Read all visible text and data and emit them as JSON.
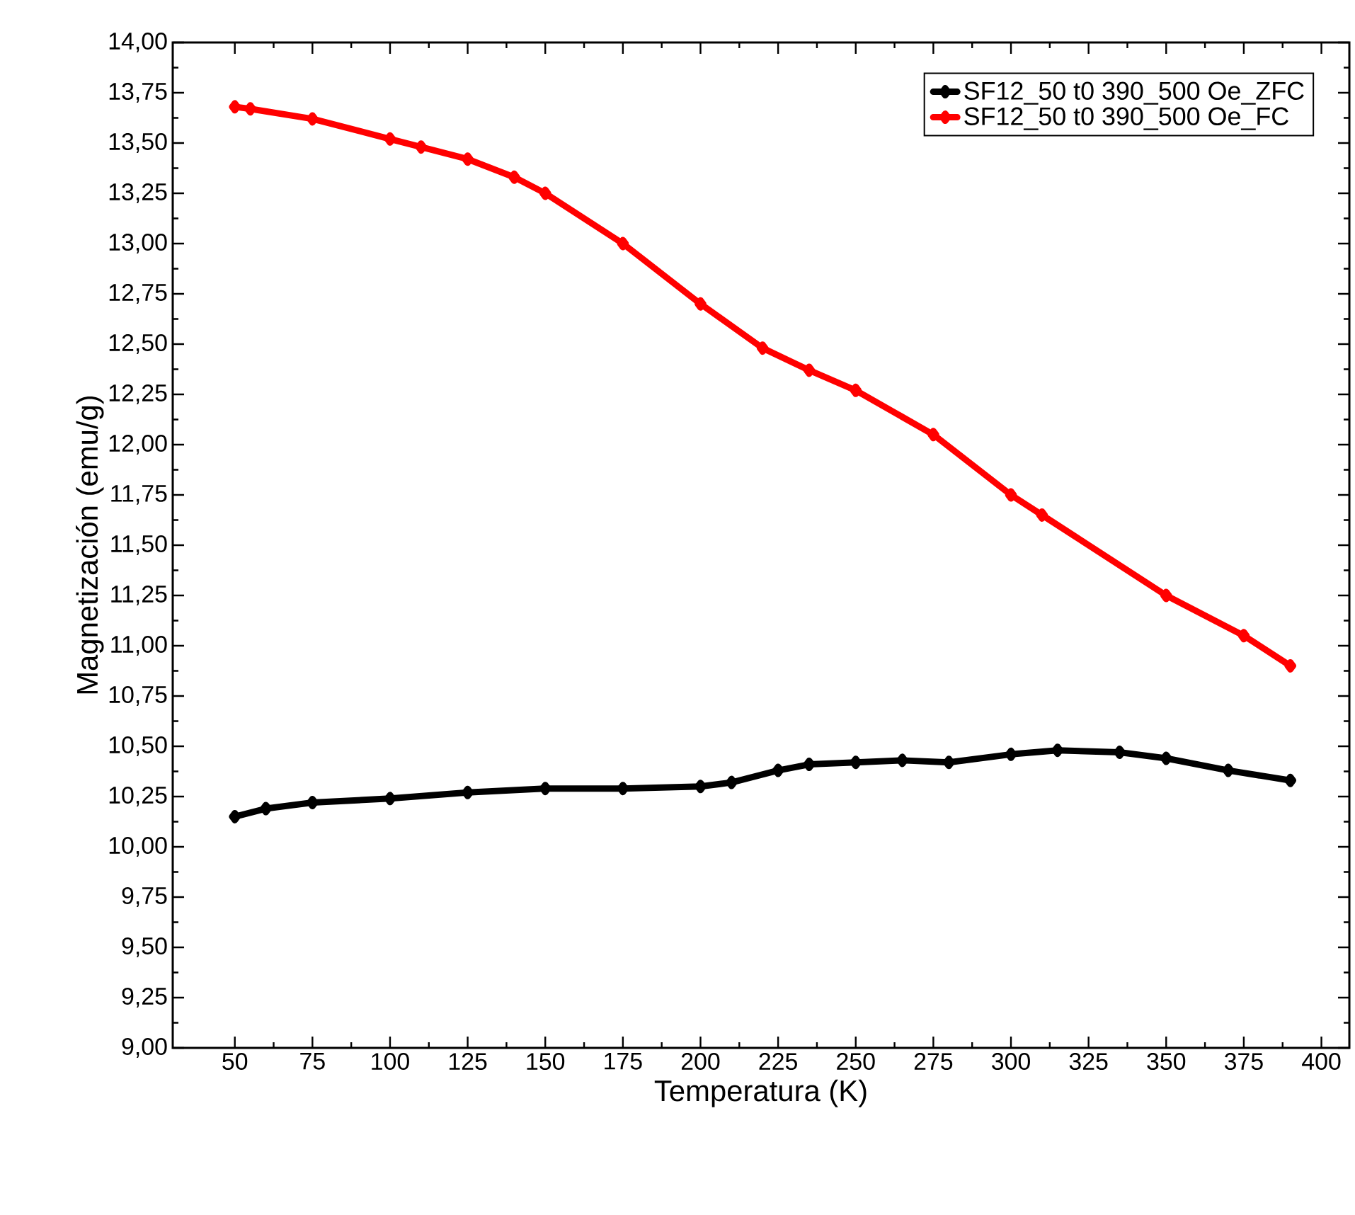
{
  "chart_data": {
    "type": "line",
    "xlabel": "Temperatura (K)",
    "ylabel": "Magnetización (emu/g)",
    "xlim": [
      30,
      409
    ],
    "xticks": [
      50,
      75,
      100,
      125,
      150,
      175,
      200,
      225,
      250,
      275,
      300,
      325,
      350,
      375,
      400
    ],
    "ylim": [
      9,
      14
    ],
    "yticks": [
      {
        "value": 9,
        "label": "9,00"
      },
      {
        "value": 9.25,
        "label": "9,25"
      },
      {
        "value": 9.5,
        "label": "9,50"
      },
      {
        "value": 9.75,
        "label": "9,75"
      },
      {
        "value": 10,
        "label": "10,00"
      },
      {
        "value": 10.25,
        "label": "10,25"
      },
      {
        "value": 10.5,
        "label": "10,50"
      },
      {
        "value": 10.75,
        "label": "10,75"
      },
      {
        "value": 11,
        "label": "11,00"
      },
      {
        "value": 11.25,
        "label": "11,25"
      },
      {
        "value": 11.5,
        "label": "11,50"
      },
      {
        "value": 11.75,
        "label": "11,75"
      },
      {
        "value": 12,
        "label": "12,00"
      },
      {
        "value": 12.25,
        "label": "12,25"
      },
      {
        "value": 12.5,
        "label": "12,50"
      },
      {
        "value": 12.75,
        "label": "12,75"
      },
      {
        "value": 13,
        "label": "13,00"
      },
      {
        "value": 13.25,
        "label": "13,25"
      },
      {
        "value": 13.5,
        "label": "13,50"
      },
      {
        "value": 13.75,
        "label": "13,75"
      },
      {
        "value": 14,
        "label": "14,00"
      }
    ],
    "legend": "top right",
    "marker": "diamond",
    "line_style": "solid",
    "series": [
      {
        "name": "SF12_50 t0 390_500 Oe_ZFC",
        "color": "#000000",
        "x": [
          50,
          60,
          75,
          100,
          125,
          150,
          175,
          200,
          210,
          225,
          235,
          250,
          265,
          280,
          300,
          315,
          335,
          350,
          370,
          390
        ],
        "values": [
          10.15,
          10.19,
          10.22,
          10.24,
          10.27,
          10.29,
          10.29,
          10.3,
          10.32,
          10.38,
          10.41,
          10.42,
          10.43,
          10.42,
          10.46,
          10.48,
          10.47,
          10.44,
          10.38,
          10.33
        ]
      },
      {
        "name": "SF12_50 t0 390_500 Oe_FC",
        "color": "#ff0000",
        "x": [
          50,
          55,
          75,
          100,
          110,
          125,
          140,
          150,
          175,
          200,
          220,
          235,
          250,
          275,
          300,
          310,
          350,
          375,
          390
        ],
        "values": [
          13.68,
          13.67,
          13.62,
          13.52,
          13.48,
          13.42,
          13.33,
          13.25,
          13.0,
          12.7,
          12.48,
          12.37,
          12.27,
          12.05,
          11.75,
          11.65,
          11.25,
          11.05,
          10.9
        ]
      }
    ]
  }
}
